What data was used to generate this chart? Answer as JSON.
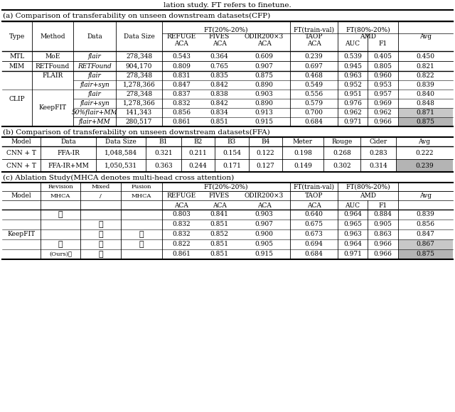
{
  "title_top": "lation study. FT refers to finetune.",
  "section_a_title": "(a) Comparison of transferability on unseen downstream datasets(CFP)",
  "section_b_title": "(b) Comparison of transferability on unseen downstream datasets(FFA)",
  "section_c_title": "(c) Ablation Study(MHCA denotes multi-head cross attention)",
  "background": "#ffffff",
  "gray_light": "#c8c8c8",
  "gray_dark": "#b4b4b4"
}
